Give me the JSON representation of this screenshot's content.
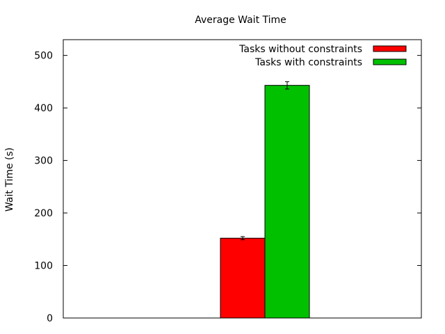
{
  "chart_data": {
    "type": "bar",
    "title": "Average Wait Time",
    "xlabel": "",
    "ylabel": "Wait Time (s)",
    "ylim": [
      0,
      530
    ],
    "yticks": [
      0,
      100,
      200,
      300,
      400,
      500
    ],
    "categories": [
      ""
    ],
    "legend_position": "top-right",
    "grid": false,
    "series": [
      {
        "name": "Tasks without constraints",
        "color": "#ff0000",
        "values": [
          152
        ],
        "errors": [
          3
        ]
      },
      {
        "name": "Tasks with constraints",
        "color": "#00c000",
        "values": [
          443
        ],
        "errors": [
          7
        ]
      }
    ]
  }
}
